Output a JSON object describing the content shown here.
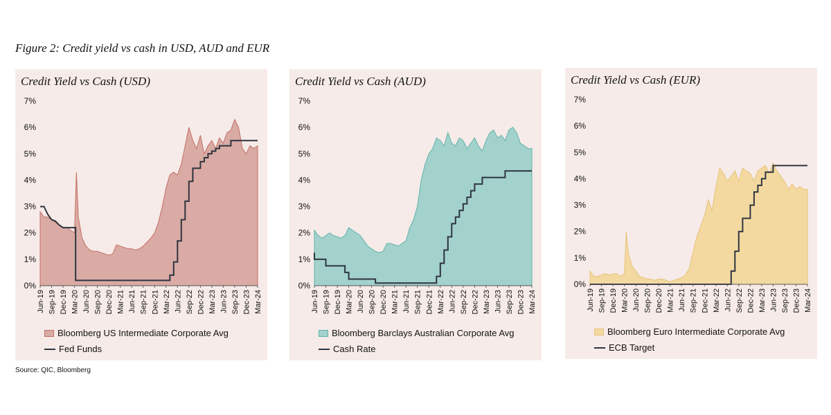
{
  "figure_title": "Figure 2: Credit yield vs cash in USD, AUD and EUR",
  "source": "Source: QIC, Bloomberg",
  "chart_data": [
    {
      "id": "usd",
      "type": "area",
      "title": "Credit Yield vs Cash (USD)",
      "ylim": [
        0,
        7
      ],
      "yticks": [
        "0%",
        "1%",
        "2%",
        "3%",
        "4%",
        "5%",
        "6%",
        "7%"
      ],
      "xticks": [
        "Jun-19",
        "Sep-19",
        "Dec-19",
        "Mar-20",
        "Jun-20",
        "Sep-20",
        "Dec-20",
        "Mar-21",
        "Jun-21",
        "Sep-21",
        "Dec-21",
        "Mar-22",
        "Jun-22",
        "Sep-22",
        "Dec-22",
        "Mar-23",
        "Jun-23",
        "Sep-23",
        "Dec-23",
        "Mar-24"
      ],
      "x_range": [
        0,
        57
      ],
      "colors": {
        "area_fill": "#d9aba4",
        "area_stroke": "#c56e64",
        "line": "#2e3440"
      },
      "series": [
        {
          "name": "Bloomberg US Intermediate Corporate Avg",
          "kind": "area",
          "x": [
            0,
            1,
            2,
            3,
            4,
            5,
            6,
            7,
            8,
            9,
            9.5,
            10,
            10.5,
            11,
            12,
            13,
            14,
            15,
            16,
            17,
            18,
            19,
            20,
            21,
            22,
            23,
            24,
            25,
            26,
            27,
            28,
            29,
            30,
            31,
            32,
            33,
            34,
            35,
            36,
            37,
            38,
            39,
            40,
            41,
            42,
            43,
            44,
            45,
            46,
            47,
            48,
            49,
            50,
            51,
            52,
            53,
            54,
            55,
            56,
            57
          ],
          "values": [
            2.8,
            2.6,
            2.6,
            2.5,
            2.4,
            2.3,
            2.2,
            2.2,
            2.1,
            2.0,
            4.3,
            2.6,
            2.2,
            1.8,
            1.5,
            1.35,
            1.3,
            1.3,
            1.25,
            1.2,
            1.15,
            1.2,
            1.55,
            1.5,
            1.45,
            1.4,
            1.4,
            1.35,
            1.4,
            1.5,
            1.65,
            1.8,
            2.0,
            2.4,
            3.0,
            3.7,
            4.2,
            4.3,
            4.2,
            4.6,
            5.3,
            6.0,
            5.5,
            5.2,
            5.7,
            5.0,
            5.3,
            5.5,
            5.2,
            5.6,
            5.4,
            5.8,
            5.9,
            6.3,
            6.0,
            5.2,
            5.0,
            5.3,
            5.2,
            5.3
          ]
        },
        {
          "name": "Fed Funds",
          "kind": "step",
          "x": [
            0,
            1,
            2,
            3,
            4,
            5,
            6,
            7,
            8,
            8,
            9.3,
            9.3,
            10,
            10,
            11,
            34,
            34,
            35,
            35,
            36,
            36,
            37,
            37,
            38,
            38,
            39,
            39,
            40,
            40,
            42,
            42,
            43,
            43,
            44,
            44,
            45,
            45,
            46,
            46,
            47,
            47,
            50,
            50,
            57
          ],
          "values": [
            3.0,
            3.0,
            2.7,
            2.5,
            2.45,
            2.3,
            2.2,
            2.2,
            2.2,
            2.2,
            2.2,
            0.2,
            0.2,
            0.2,
            0.2,
            0.2,
            0.4,
            0.4,
            0.9,
            0.9,
            1.7,
            1.7,
            2.5,
            2.5,
            3.2,
            3.2,
            3.95,
            3.95,
            4.45,
            4.45,
            4.7,
            4.7,
            4.85,
            4.85,
            5.0,
            5.0,
            5.1,
            5.1,
            5.2,
            5.2,
            5.3,
            5.3,
            5.5,
            5.5
          ]
        }
      ],
      "legend": [
        "Bloomberg US Intermediate Corporate Avg",
        "Fed Funds"
      ]
    },
    {
      "id": "aud",
      "type": "area",
      "title": "Credit Yield vs Cash (AUD)",
      "ylim": [
        0,
        7
      ],
      "yticks": [
        "0%",
        "1%",
        "2%",
        "3%",
        "4%",
        "5%",
        "6%",
        "7%"
      ],
      "xticks": [
        "Jun-19",
        "Sep-19",
        "Dec-19",
        "Mar-20",
        "Jun-20",
        "Sep-20",
        "Dec-20",
        "Mar-21",
        "Jun-21",
        "Sep-21",
        "Dec-21",
        "Mar-22",
        "Jun-22",
        "Sep-22",
        "Dec-22",
        "Mar-23",
        "Jun-23",
        "Sep-23",
        "Dec-23",
        "Mar-24"
      ],
      "x_range": [
        0,
        57
      ],
      "colors": {
        "area_fill": "#a3d1cc",
        "area_stroke": "#5fb3ad",
        "line": "#2e3440"
      },
      "series": [
        {
          "name": "Bloomberg Barclays Australian Corporate Avg",
          "kind": "area",
          "x": [
            0,
            1,
            2,
            3,
            4,
            5,
            6,
            7,
            8,
            9,
            10,
            11,
            12,
            13,
            14,
            15,
            16,
            17,
            18,
            19,
            20,
            21,
            22,
            23,
            24,
            25,
            26,
            27,
            28,
            29,
            30,
            31,
            32,
            33,
            34,
            35,
            36,
            37,
            38,
            39,
            40,
            41,
            42,
            43,
            44,
            45,
            46,
            47,
            48,
            49,
            50,
            51,
            52,
            53,
            54,
            55,
            56,
            57
          ],
          "values": [
            2.1,
            1.9,
            1.8,
            1.9,
            2.0,
            1.9,
            1.85,
            1.8,
            1.9,
            2.2,
            2.1,
            2.0,
            1.9,
            1.7,
            1.5,
            1.4,
            1.3,
            1.25,
            1.3,
            1.6,
            1.6,
            1.55,
            1.5,
            1.6,
            1.7,
            2.2,
            2.5,
            3.0,
            4.0,
            4.6,
            5.0,
            5.2,
            5.6,
            5.5,
            5.3,
            5.8,
            5.4,
            5.3,
            5.6,
            5.5,
            5.2,
            5.4,
            5.6,
            5.3,
            5.1,
            5.5,
            5.8,
            5.9,
            5.6,
            5.7,
            5.5,
            5.9,
            6.0,
            5.8,
            5.4,
            5.3,
            5.2,
            5.2
          ]
        },
        {
          "name": "Cash Rate",
          "kind": "step",
          "x": [
            0,
            0,
            3,
            3,
            8,
            8,
            9,
            9,
            16,
            16,
            32,
            32,
            33,
            33,
            34,
            34,
            35,
            35,
            36,
            36,
            37,
            37,
            38,
            38,
            39,
            39,
            40,
            40,
            41,
            41,
            42,
            42,
            44,
            44,
            45,
            45,
            46,
            46,
            47,
            47,
            48,
            48,
            50,
            50,
            52,
            52,
            57
          ],
          "values": [
            1.25,
            1.0,
            1.0,
            0.75,
            0.75,
            0.5,
            0.5,
            0.25,
            0.25,
            0.1,
            0.1,
            0.35,
            0.35,
            0.85,
            0.85,
            1.35,
            1.35,
            1.85,
            1.85,
            2.35,
            2.35,
            2.6,
            2.6,
            2.85,
            2.85,
            3.1,
            3.1,
            3.35,
            3.35,
            3.6,
            3.6,
            3.85,
            3.85,
            4.1,
            4.1,
            4.1,
            4.1,
            4.1,
            4.1,
            4.1,
            4.1,
            4.1,
            4.1,
            4.35,
            4.35,
            4.35,
            4.35
          ]
        }
      ],
      "legend": [
        "Bloomberg Barclays Australian Corporate Avg",
        "Cash Rate"
      ]
    },
    {
      "id": "eur",
      "type": "area",
      "title": "Credit Yield vs Cash (EUR)",
      "ylim": [
        0,
        7
      ],
      "yticks": [
        "0%",
        "1%",
        "2%",
        "3%",
        "4%",
        "5%",
        "6%",
        "7%"
      ],
      "xticks": [
        "Jun-19",
        "Sep-19",
        "Dec-19",
        "Mar-20",
        "Jun-20",
        "Sep-20",
        "Dec-20",
        "Mar-21",
        "Jun-21",
        "Sep-21",
        "Dec-21",
        "Mar-22",
        "Jun-22",
        "Sep-22",
        "Dec-22",
        "Mar-23",
        "Jun-23",
        "Sep-23",
        "Dec-23",
        "Mar-24"
      ],
      "x_range": [
        0,
        57
      ],
      "colors": {
        "area_fill": "#f3d9a0",
        "area_stroke": "#e8c27a",
        "line": "#2e3440"
      },
      "series": [
        {
          "name": "Bloomberg Euro Intermediate Corporate Avg",
          "kind": "area",
          "x": [
            0,
            1,
            2,
            3,
            4,
            5,
            6,
            7,
            8,
            9,
            9.5,
            10,
            11,
            12,
            13,
            14,
            15,
            16,
            17,
            18,
            19,
            20,
            21,
            22,
            23,
            24,
            25,
            26,
            27,
            28,
            29,
            30,
            31,
            32,
            33,
            34,
            35,
            36,
            37,
            38,
            39,
            40,
            41,
            42,
            43,
            44,
            45,
            46,
            47,
            48,
            49,
            50,
            51,
            52,
            53,
            54,
            55,
            56,
            57
          ],
          "values": [
            0.5,
            0.3,
            0.3,
            0.35,
            0.4,
            0.35,
            0.4,
            0.4,
            0.3,
            0.4,
            2.0,
            1.2,
            0.7,
            0.5,
            0.3,
            0.25,
            0.2,
            0.2,
            0.15,
            0.2,
            0.2,
            0.15,
            0.1,
            0.15,
            0.2,
            0.25,
            0.35,
            0.6,
            1.2,
            1.8,
            2.2,
            2.6,
            3.2,
            2.8,
            3.7,
            4.4,
            4.2,
            3.9,
            4.1,
            4.3,
            3.9,
            4.4,
            4.3,
            4.2,
            3.9,
            4.3,
            4.4,
            4.5,
            4.2,
            4.6,
            4.3,
            4.1,
            3.9,
            3.6,
            3.8,
            3.6,
            3.7,
            3.6,
            3.6
          ]
        },
        {
          "name": "ECB Target",
          "kind": "step",
          "x": [
            0,
            37,
            37,
            38,
            38,
            39,
            39,
            40,
            40,
            42,
            42,
            43,
            43,
            44,
            44,
            45,
            45,
            46,
            46,
            47,
            47,
            48,
            48,
            50,
            50,
            57
          ],
          "values": [
            0,
            0,
            0.5,
            0.5,
            1.25,
            1.25,
            2.0,
            2.0,
            2.5,
            2.5,
            3.0,
            3.0,
            3.5,
            3.5,
            3.75,
            3.75,
            4.0,
            4.0,
            4.25,
            4.25,
            4.25,
            4.25,
            4.5,
            4.5,
            4.5,
            4.5
          ]
        }
      ],
      "legend": [
        "Bloomberg Euro Intermediate Corporate Avg",
        "ECB Target"
      ]
    }
  ]
}
